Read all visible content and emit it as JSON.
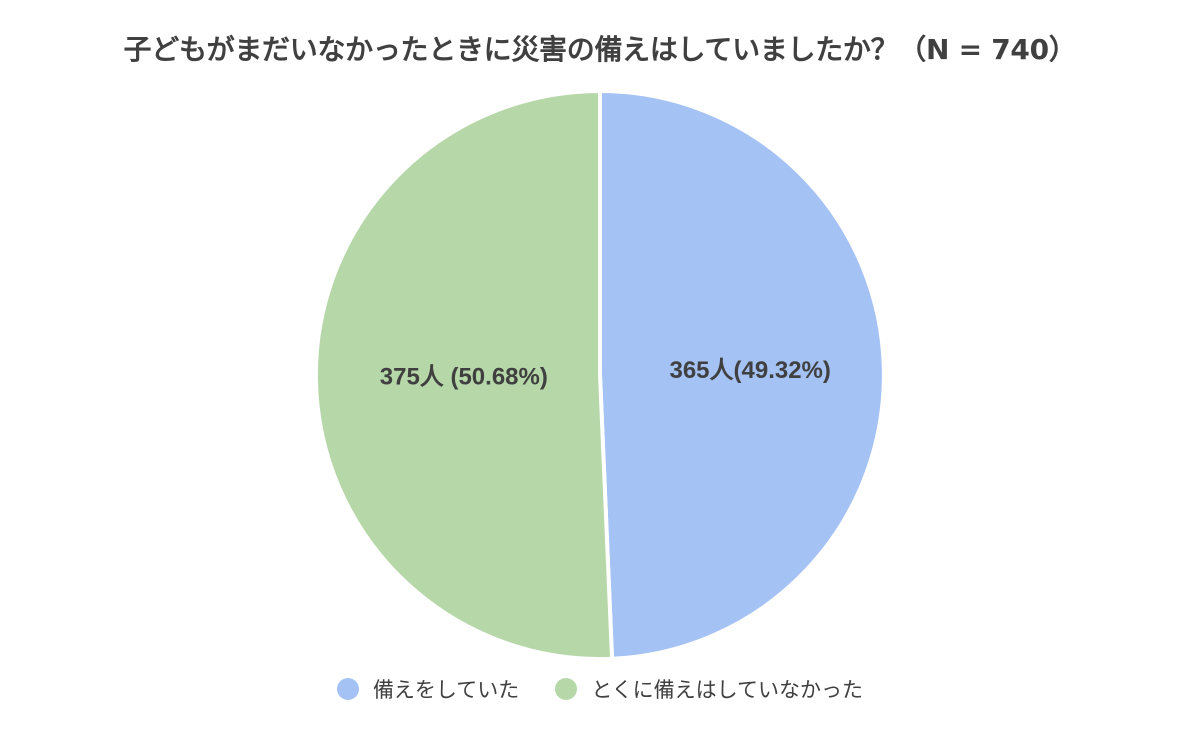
{
  "chart_data": {
    "type": "pie",
    "title": "子どもがまだいなかったときに災害の備えはしていましたか？（N = 740）",
    "slices": [
      {
        "name": "備えをしていた",
        "value": 365,
        "percent": 49.32,
        "label": "365人(49.32%)",
        "color": "#a4c2f4"
      },
      {
        "name": "とくに備えはしていなかった",
        "value": 375,
        "percent": 50.68,
        "label": "375人 (50.68%)",
        "color": "#b6d7a8"
      }
    ],
    "legend_position": "bottom",
    "start_angle": "top",
    "direction": "clockwise"
  }
}
